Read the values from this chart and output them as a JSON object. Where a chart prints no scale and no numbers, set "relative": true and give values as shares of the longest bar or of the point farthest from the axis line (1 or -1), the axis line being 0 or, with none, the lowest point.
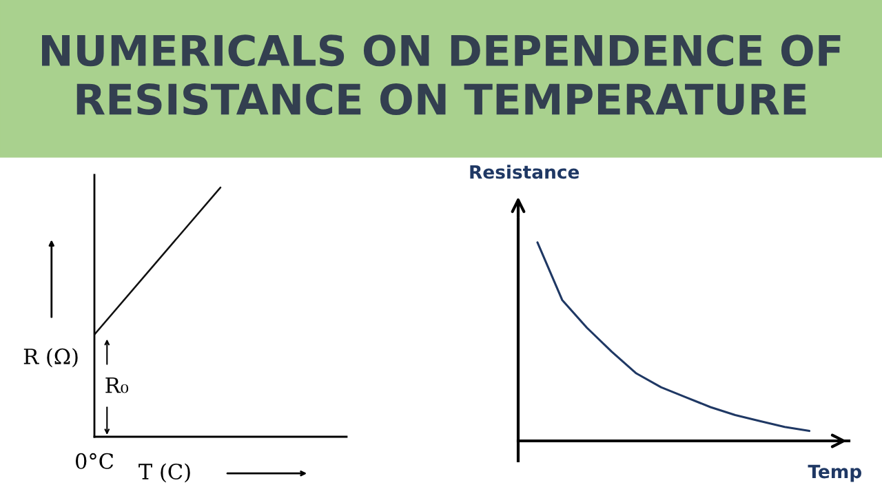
{
  "chart_data": [
    {
      "type": "line",
      "title": "NUMERICALS ON DEPENDENCE OF RESISTANCE ON TEMPERATURE",
      "relative": true,
      "categories": [
        null,
        null,
        null
      ],
      "xlabel": "T (C)",
      "ylabel": "R (Ω)",
      "annotations": [
        "R₀",
        "0°C"
      ],
      "series": [
        {
          "color": "#111111",
          "values": [
            0.41,
            1.0,
            null
          ]
        }
      ]
    },
    {
      "type": "line",
      "relative": true,
      "categories": [
        null,
        null,
        null,
        null,
        null,
        null,
        null,
        null,
        null,
        null,
        null,
        null
      ],
      "xlabel": "Temp",
      "ylabel": "Resistance",
      "series": [
        {
          "color": "#1f3864",
          "values": [
            1,
            0.71,
            0.57,
            0.45,
            0.34,
            0.27,
            0.22,
            0.17,
            0.13,
            0.1,
            0.07,
            0.05
          ]
        }
      ]
    }
  ]
}
